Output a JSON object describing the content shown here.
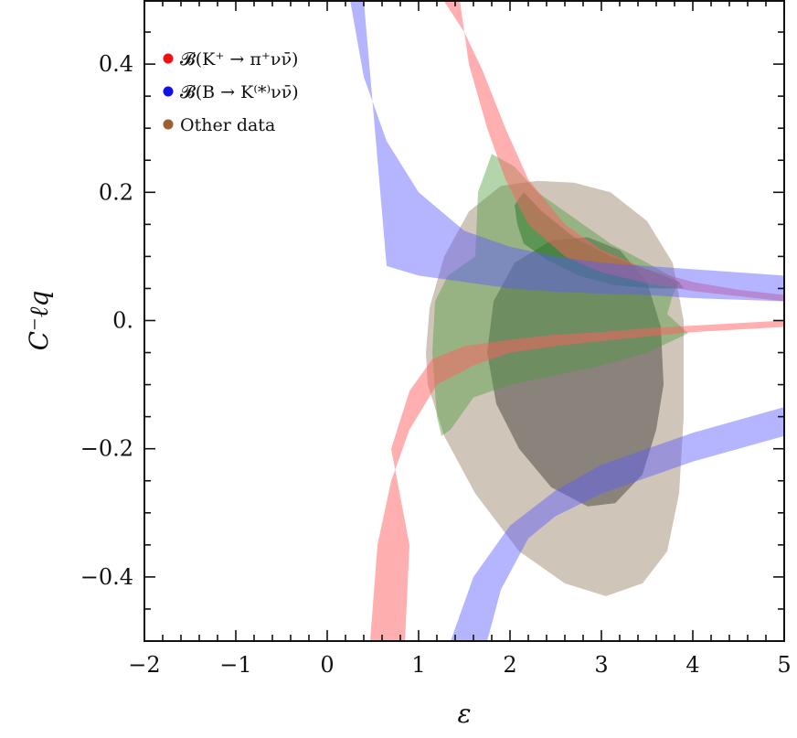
{
  "chart_data": {
    "type": "area",
    "xlabel": "ε",
    "ylabel": "C⁻ℓq",
    "xlim": [
      -2,
      5
    ],
    "ylim": [
      -0.5,
      0.5
    ],
    "x_ticks": [
      {
        "v": -2,
        "label": "−2"
      },
      {
        "v": -1,
        "label": "−1"
      },
      {
        "v": 0,
        "label": "0"
      },
      {
        "v": 1,
        "label": "1"
      },
      {
        "v": 2,
        "label": "2"
      },
      {
        "v": 3,
        "label": "3"
      },
      {
        "v": 4,
        "label": "4"
      },
      {
        "v": 5,
        "label": "5"
      }
    ],
    "y_ticks": [
      {
        "v": 0.4,
        "label": "0.4"
      },
      {
        "v": 0.2,
        "label": "0.2"
      },
      {
        "v": 0.0,
        "label": "0."
      },
      {
        "v": -0.2,
        "label": "−0.2"
      },
      {
        "v": -0.4,
        "label": "−0.4"
      }
    ],
    "legend": [
      {
        "text": "𝓑(K⁺ → π⁺νν̄)",
        "color": "#ee1111"
      },
      {
        "text": "𝓑(B → K⁽*⁾νν̄)",
        "color": "#1111ee"
      },
      {
        "text": "Other data",
        "color": "#9a5f32"
      }
    ],
    "legend_position": "top-left",
    "series": [
      {
        "color": "#8a6f4f",
        "opacity": 0.4,
        "polygons": [
          [
            [
              1.08,
              -0.05
            ],
            [
              1.12,
              0.02
            ],
            [
              1.28,
              0.1
            ],
            [
              1.55,
              0.17
            ],
            [
              1.9,
              0.21
            ],
            [
              2.3,
              0.218
            ],
            [
              2.7,
              0.215
            ],
            [
              3.1,
              0.2
            ],
            [
              3.5,
              0.155
            ],
            [
              3.78,
              0.09
            ],
            [
              3.9,
              0.0
            ],
            [
              3.9,
              -0.15
            ],
            [
              3.85,
              -0.27
            ],
            [
              3.72,
              -0.36
            ],
            [
              3.45,
              -0.41
            ],
            [
              3.05,
              -0.43
            ],
            [
              2.6,
              -0.41
            ],
            [
              2.1,
              -0.36
            ],
            [
              1.62,
              -0.27
            ],
            [
              1.28,
              -0.18
            ],
            [
              1.1,
              -0.1
            ]
          ]
        ]
      },
      {
        "color": "#333333",
        "opacity": 0.45,
        "polygons": [
          [
            [
              1.75,
              -0.05
            ],
            [
              1.82,
              0.03
            ],
            [
              2.05,
              0.09
            ],
            [
              2.45,
              0.125
            ],
            [
              2.85,
              0.13
            ],
            [
              3.2,
              0.11
            ],
            [
              3.5,
              0.06
            ],
            [
              3.65,
              -0.01
            ],
            [
              3.68,
              -0.1
            ],
            [
              3.6,
              -0.17
            ],
            [
              3.45,
              -0.24
            ],
            [
              3.15,
              -0.285
            ],
            [
              2.85,
              -0.29
            ],
            [
              2.45,
              -0.26
            ],
            [
              2.1,
              -0.2
            ],
            [
              1.85,
              -0.13
            ]
          ]
        ]
      },
      {
        "color": "#4a9a3a",
        "opacity": 0.42,
        "polygons": [
          [
            [
              1.2,
              -0.15
            ],
            [
              1.15,
              -0.05
            ],
            [
              1.18,
              0.03
            ],
            [
              1.32,
              0.07
            ],
            [
              1.62,
              0.1
            ],
            [
              1.65,
              0.2
            ],
            [
              1.8,
              0.26
            ],
            [
              2.05,
              0.24
            ],
            [
              2.3,
              0.2
            ],
            [
              2.7,
              0.16
            ],
            [
              3.1,
              0.12
            ],
            [
              3.5,
              0.09
            ],
            [
              3.75,
              0.07
            ],
            [
              3.85,
              0.06
            ],
            [
              3.78,
              0.04
            ],
            [
              3.72,
              0.01
            ],
            [
              3.95,
              -0.02
            ],
            [
              3.5,
              -0.05
            ],
            [
              3.0,
              -0.07
            ],
            [
              2.5,
              -0.085
            ],
            [
              2.0,
              -0.1
            ],
            [
              1.6,
              -0.12
            ],
            [
              1.35,
              -0.17
            ],
            [
              1.25,
              -0.18
            ]
          ]
        ]
      },
      {
        "color": "#2d7d2d",
        "opacity": 0.55,
        "polygons": [
          [
            [
              2.05,
              0.18
            ],
            [
              2.15,
              0.2
            ],
            [
              2.35,
              0.17
            ],
            [
              2.7,
              0.13
            ],
            [
              3.1,
              0.1
            ],
            [
              3.5,
              0.08
            ],
            [
              3.85,
              0.06
            ],
            [
              3.9,
              0.05
            ],
            [
              3.55,
              0.05
            ],
            [
              3.15,
              0.055
            ],
            [
              2.75,
              0.07
            ],
            [
              2.4,
              0.095
            ],
            [
              2.15,
              0.12
            ],
            [
              2.08,
              0.15
            ]
          ]
        ]
      },
      {
        "name": "red-upper",
        "color": "#ff6060",
        "opacity": 0.5,
        "polygons": [
          [
            [
              1.27,
              0.5
            ],
            [
              1.5,
              0.45
            ],
            [
              1.7,
              0.39
            ],
            [
              1.95,
              0.3
            ],
            [
              2.2,
              0.22
            ],
            [
              2.6,
              0.15
            ],
            [
              3.0,
              0.11
            ],
            [
              3.5,
              0.08
            ],
            [
              4.0,
              0.06
            ],
            [
              4.5,
              0.048
            ],
            [
              5.0,
              0.04
            ],
            [
              5.0,
              0.03
            ],
            [
              4.5,
              0.038
            ],
            [
              4.0,
              0.046
            ],
            [
              3.5,
              0.058
            ],
            [
              3.0,
              0.075
            ],
            [
              2.6,
              0.1
            ],
            [
              2.2,
              0.15
            ],
            [
              1.95,
              0.22
            ],
            [
              1.75,
              0.3
            ],
            [
              1.55,
              0.4
            ],
            [
              1.45,
              0.5
            ]
          ]
        ]
      },
      {
        "name": "red-lower",
        "color": "#ff6060",
        "opacity": 0.5,
        "polygons": [
          [
            [
              0.47,
              -0.5
            ],
            [
              0.55,
              -0.35
            ],
            [
              0.7,
              -0.25
            ],
            [
              0.9,
              -0.17
            ],
            [
              1.2,
              -0.1
            ],
            [
              1.6,
              -0.07
            ],
            [
              2.0,
              -0.05
            ],
            [
              2.5,
              -0.04
            ],
            [
              3.0,
              -0.032
            ],
            [
              3.5,
              -0.025
            ],
            [
              4.0,
              -0.018
            ],
            [
              5.0,
              -0.01
            ],
            [
              5.0,
              0.0
            ],
            [
              4.0,
              -0.008
            ],
            [
              3.5,
              -0.012
            ],
            [
              3.0,
              -0.018
            ],
            [
              2.5,
              -0.022
            ],
            [
              2.0,
              -0.03
            ],
            [
              1.5,
              -0.04
            ],
            [
              1.15,
              -0.06
            ],
            [
              0.9,
              -0.11
            ],
            [
              0.7,
              -0.2
            ],
            [
              0.9,
              -0.35
            ],
            [
              0.85,
              -0.5
            ]
          ]
        ]
      },
      {
        "name": "blue-upper",
        "color": "#5a5aff",
        "opacity": 0.45,
        "polygons": [
          [
            [
              0.25,
              0.5
            ],
            [
              0.4,
              0.38
            ],
            [
              0.65,
              0.28
            ],
            [
              1.0,
              0.2
            ],
            [
              1.5,
              0.14
            ],
            [
              2.0,
              0.115
            ],
            [
              2.5,
              0.1
            ],
            [
              3.0,
              0.09
            ],
            [
              3.5,
              0.085
            ],
            [
              4.0,
              0.08
            ],
            [
              5.0,
              0.07
            ],
            [
              5.0,
              0.03
            ],
            [
              4.0,
              0.035
            ],
            [
              3.5,
              0.04
            ],
            [
              3.0,
              0.042
            ],
            [
              2.5,
              0.045
            ],
            [
              2.0,
              0.05
            ],
            [
              1.5,
              0.06
            ],
            [
              1.0,
              0.07
            ],
            [
              0.65,
              0.085
            ],
            [
              0.4,
              0.5
            ]
          ]
        ]
      },
      {
        "name": "blue-lower",
        "color": "#5a5aff",
        "opacity": 0.45,
        "polygons": [
          [
            [
              1.35,
              -0.5
            ],
            [
              1.6,
              -0.4
            ],
            [
              2.0,
              -0.32
            ],
            [
              2.5,
              -0.265
            ],
            [
              3.0,
              -0.225
            ],
            [
              3.5,
              -0.2
            ],
            [
              4.0,
              -0.175
            ],
            [
              4.5,
              -0.155
            ],
            [
              5.0,
              -0.135
            ],
            [
              5.0,
              -0.18
            ],
            [
              4.5,
              -0.2
            ],
            [
              4.0,
              -0.22
            ],
            [
              3.5,
              -0.245
            ],
            [
              3.0,
              -0.27
            ],
            [
              2.5,
              -0.305
            ],
            [
              2.2,
              -0.34
            ],
            [
              1.9,
              -0.42
            ],
            [
              1.75,
              -0.5
            ]
          ]
        ]
      }
    ]
  }
}
